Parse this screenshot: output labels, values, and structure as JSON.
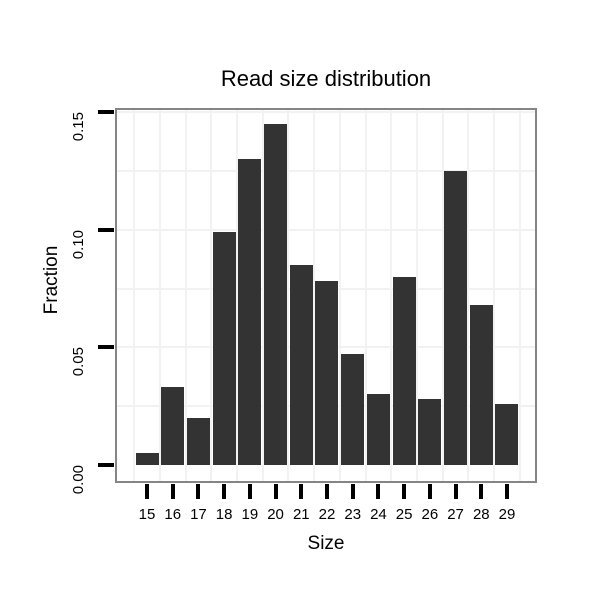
{
  "chart_data": {
    "type": "bar",
    "title": "Read size distribution",
    "xlabel": "Size",
    "ylabel": "Fraction",
    "categories": [
      15,
      16,
      17,
      18,
      19,
      20,
      21,
      22,
      23,
      24,
      25,
      26,
      27,
      28,
      29
    ],
    "values": [
      0.005,
      0.033,
      0.02,
      0.099,
      0.13,
      0.145,
      0.085,
      0.078,
      0.047,
      0.03,
      0.08,
      0.028,
      0.125,
      0.068,
      0.026
    ],
    "ylim": [
      0,
      0.155
    ],
    "yticks": [
      0.0,
      0.05,
      0.1,
      0.15
    ],
    "ytick_labels": [
      "0.00",
      "0.05",
      "0.10",
      "0.15"
    ],
    "xtick_labels": [
      "15",
      "16",
      "17",
      "18",
      "19",
      "20",
      "21",
      "22",
      "23",
      "24",
      "25",
      "26",
      "27",
      "28",
      "29"
    ],
    "grid": {
      "horizontal_step": 0.025,
      "vertical": "between-categories",
      "legend": "none"
    }
  },
  "colors": {
    "background": "#ffffff",
    "panel_background": "#ffffff",
    "panel_border": "#858585",
    "bar": "#333333",
    "gridline": "#f2f2f2",
    "tick": "#000000",
    "text": "#000000"
  }
}
